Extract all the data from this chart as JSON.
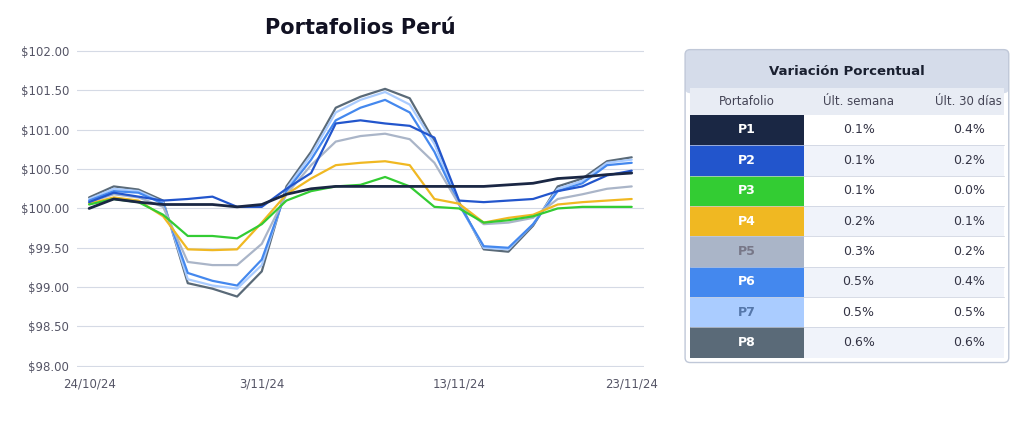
{
  "title": "Portafolios Perú",
  "x_labels": [
    "24/10/24",
    "3/11/24",
    "13/11/24",
    "23/11/24"
  ],
  "x_ticks_pos": [
    0,
    7,
    15,
    22
  ],
  "series": {
    "P1": {
      "color": "#1a2744",
      "linewidth": 2.0,
      "linestyle": "-",
      "zorder": 10,
      "data": [
        100.0,
        100.12,
        100.08,
        100.05,
        100.05,
        100.05,
        100.02,
        100.05,
        100.18,
        100.25,
        100.28,
        100.28,
        100.28,
        100.28,
        100.28,
        100.28,
        100.28,
        100.3,
        100.32,
        100.38,
        100.4,
        100.43,
        100.45
      ]
    },
    "P2": {
      "color": "#2255cc",
      "linewidth": 1.6,
      "linestyle": "-",
      "zorder": 9,
      "data": [
        100.08,
        100.2,
        100.15,
        100.1,
        100.12,
        100.15,
        100.02,
        100.02,
        100.25,
        100.45,
        101.08,
        101.12,
        101.08,
        101.05,
        100.9,
        100.1,
        100.08,
        100.1,
        100.12,
        100.22,
        100.28,
        100.42,
        100.48
      ]
    },
    "P3": {
      "color": "#33cc33",
      "linewidth": 1.6,
      "linestyle": "-",
      "zorder": 8,
      "data": [
        100.05,
        100.12,
        100.08,
        99.92,
        99.65,
        99.65,
        99.62,
        99.8,
        100.1,
        100.22,
        100.28,
        100.3,
        100.4,
        100.28,
        100.02,
        100.0,
        99.82,
        99.85,
        99.9,
        100.0,
        100.02,
        100.02,
        100.02
      ]
    },
    "P4": {
      "color": "#f0b822",
      "linewidth": 1.6,
      "linestyle": "-",
      "zorder": 7,
      "data": [
        100.06,
        100.14,
        100.1,
        99.9,
        99.48,
        99.47,
        99.48,
        99.82,
        100.18,
        100.38,
        100.55,
        100.58,
        100.6,
        100.55,
        100.12,
        100.06,
        99.82,
        99.88,
        99.92,
        100.05,
        100.08,
        100.1,
        100.12
      ]
    },
    "P5": {
      "color": "#aab5c8",
      "linewidth": 1.6,
      "linestyle": "-",
      "zorder": 6,
      "data": [
        100.08,
        100.18,
        100.14,
        100.02,
        99.32,
        99.28,
        99.28,
        99.55,
        100.18,
        100.55,
        100.85,
        100.92,
        100.95,
        100.88,
        100.58,
        100.05,
        99.8,
        99.82,
        99.88,
        100.12,
        100.18,
        100.25,
        100.28
      ]
    },
    "P6": {
      "color": "#4488ee",
      "linewidth": 1.6,
      "linestyle": "-",
      "zorder": 5,
      "data": [
        100.1,
        100.22,
        100.2,
        100.06,
        99.18,
        99.08,
        99.02,
        99.35,
        100.22,
        100.62,
        101.12,
        101.28,
        101.38,
        101.22,
        100.72,
        100.05,
        99.52,
        99.5,
        99.8,
        100.22,
        100.32,
        100.55,
        100.58
      ]
    },
    "P7": {
      "color": "#aaccff",
      "linewidth": 1.6,
      "linestyle": "-",
      "zorder": 4,
      "data": [
        100.12,
        100.25,
        100.22,
        100.08,
        99.1,
        99.02,
        98.98,
        99.28,
        100.25,
        100.68,
        101.22,
        101.38,
        101.48,
        101.32,
        100.82,
        100.05,
        99.5,
        99.48,
        99.8,
        100.25,
        100.35,
        100.58,
        100.62
      ]
    },
    "P8": {
      "color": "#5a6a78",
      "linewidth": 1.6,
      "linestyle": "-",
      "zorder": 3,
      "data": [
        100.14,
        100.28,
        100.24,
        100.1,
        99.05,
        98.98,
        98.88,
        99.2,
        100.28,
        100.72,
        101.28,
        101.42,
        101.52,
        101.4,
        100.85,
        100.08,
        99.48,
        99.45,
        99.78,
        100.28,
        100.38,
        100.6,
        100.65
      ]
    }
  },
  "ylim": [
    97.98,
    102.08
  ],
  "yticks": [
    98.0,
    98.5,
    99.0,
    99.5,
    100.0,
    100.5,
    101.0,
    101.5,
    102.0
  ],
  "table": {
    "title": "Variación Porcentual",
    "headers": [
      "Portafolio",
      "Últ. semana",
      "Últ. 30 días"
    ],
    "rows": [
      {
        "name": "P1",
        "color": "#1a2744",
        "text_color": "#ffffff",
        "ult_semana": "0.1%",
        "ult_30": "0.4%"
      },
      {
        "name": "P2",
        "color": "#2255cc",
        "text_color": "#ffffff",
        "ult_semana": "0.1%",
        "ult_30": "0.2%"
      },
      {
        "name": "P3",
        "color": "#33cc33",
        "text_color": "#ffffff",
        "ult_semana": "0.1%",
        "ult_30": "0.0%"
      },
      {
        "name": "P4",
        "color": "#f0b822",
        "text_color": "#ffffff",
        "ult_semana": "0.2%",
        "ult_30": "0.1%"
      },
      {
        "name": "P5",
        "color": "#aab5c8",
        "text_color": "#777788",
        "ult_semana": "0.3%",
        "ult_30": "0.2%"
      },
      {
        "name": "P6",
        "color": "#4488ee",
        "text_color": "#ffffff",
        "ult_semana": "0.5%",
        "ult_30": "0.4%"
      },
      {
        "name": "P7",
        "color": "#aaccff",
        "text_color": "#5577aa",
        "ult_semana": "0.5%",
        "ult_30": "0.5%"
      },
      {
        "name": "P8",
        "color": "#5a6a78",
        "text_color": "#ffffff",
        "ult_semana": "0.6%",
        "ult_30": "0.6%"
      }
    ]
  },
  "background_color": "#ffffff",
  "plot_bg_color": "#ffffff",
  "grid_color": "#d5dae5",
  "legend_names": [
    "P1",
    "P2",
    "P3",
    "P4",
    "P5",
    "P6",
    "P7",
    "P8"
  ]
}
